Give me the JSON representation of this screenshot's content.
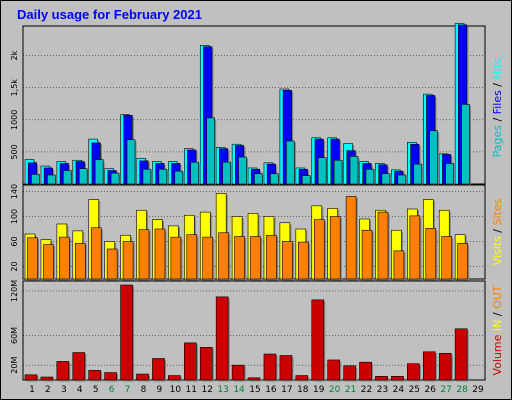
{
  "title": "Daily usage for February 2021",
  "colors": {
    "background": "#c0c0c0",
    "hits": "#00ffff",
    "files": "#0000ff",
    "pages": "#00c0c0",
    "visits": "#ffff00",
    "sites": "#ff8000",
    "kbytes": "#cc0000",
    "weekend_label": "#008040"
  },
  "chart_data": [
    {
      "type": "bar",
      "panel": "hits-files-pages",
      "categories": [
        "1",
        "2",
        "3",
        "4",
        "5",
        "6",
        "7",
        "8",
        "9",
        "10",
        "11",
        "12",
        "13",
        "14",
        "15",
        "16",
        "17",
        "18",
        "19",
        "20",
        "21",
        "22",
        "23",
        "24",
        "25",
        "26",
        "27",
        "28",
        "29"
      ],
      "ticks": [
        {
          "value": 500,
          "label": "500"
        },
        {
          "value": 1000,
          "label": "1000"
        },
        {
          "value": 1500,
          "label": "1,5k"
        },
        {
          "value": 2000,
          "label": "2k"
        }
      ],
      "ylim": [
        0,
        2400
      ],
      "side_label": [
        "Pages",
        " / ",
        "Files",
        " / ",
        "Hits",
        "_"
      ],
      "series": [
        {
          "key": "hits",
          "values": [
            380,
            280,
            350,
            370,
            700,
            240,
            1080,
            400,
            350,
            350,
            550,
            2160,
            570,
            620,
            250,
            330,
            1480,
            250,
            720,
            720,
            630,
            350,
            320,
            220,
            650,
            1400,
            470,
            2500,
            0
          ]
        },
        {
          "key": "files",
          "values": [
            330,
            250,
            320,
            350,
            640,
            210,
            1070,
            360,
            320,
            320,
            530,
            2140,
            550,
            600,
            230,
            310,
            1460,
            230,
            700,
            700,
            520,
            320,
            300,
            200,
            620,
            1380,
            460,
            2480,
            0
          ]
        },
        {
          "key": "pages",
          "values": [
            150,
            140,
            210,
            240,
            380,
            170,
            690,
            230,
            230,
            200,
            340,
            1030,
            340,
            420,
            160,
            160,
            670,
            130,
            410,
            370,
            430,
            230,
            160,
            140,
            310,
            830,
            320,
            1240,
            0
          ]
        }
      ]
    },
    {
      "type": "bar",
      "panel": "visits-sites",
      "categories": [
        "1",
        "2",
        "3",
        "4",
        "5",
        "6",
        "7",
        "8",
        "9",
        "10",
        "11",
        "12",
        "13",
        "14",
        "15",
        "16",
        "17",
        "18",
        "19",
        "20",
        "21",
        "22",
        "23",
        "24",
        "25",
        "26",
        "27",
        "28",
        "29"
      ],
      "ticks": [
        {
          "value": 20,
          "label": "20"
        },
        {
          "value": 60,
          "label": "60"
        },
        {
          "value": 100,
          "label": "100"
        },
        {
          "value": 140,
          "label": "140"
        }
      ],
      "ylim": [
        0,
        144
      ],
      "side_label": [
        "Visits",
        " / ",
        "Sites"
      ],
      "series": [
        {
          "key": "visits",
          "values": [
            72,
            63,
            88,
            77,
            127,
            60,
            70,
            110,
            95,
            85,
            102,
            107,
            137,
            100,
            105,
            100,
            90,
            80,
            117,
            113,
            0,
            96,
            110,
            78,
            112,
            127,
            110,
            71,
            0
          ]
        },
        {
          "key": "sites",
          "values": [
            66,
            55,
            67,
            57,
            82,
            48,
            60,
            79,
            80,
            67,
            71,
            67,
            74,
            68,
            68,
            70,
            60,
            59,
            95,
            100,
            132,
            78,
            107,
            45,
            101,
            81,
            68,
            57,
            0
          ]
        }
      ]
    },
    {
      "type": "bar",
      "panel": "kbytes",
      "categories": [
        "1",
        "2",
        "3",
        "4",
        "5",
        "6",
        "7",
        "8",
        "9",
        "10",
        "11",
        "12",
        "13",
        "14",
        "15",
        "16",
        "17",
        "18",
        "19",
        "20",
        "21",
        "22",
        "23",
        "24",
        "25",
        "26",
        "27",
        "28",
        "29"
      ],
      "ticks": [
        {
          "value": 20,
          "label": "20M"
        },
        {
          "value": 60,
          "label": "60M"
        },
        {
          "value": 120,
          "label": "120M"
        }
      ],
      "ylim": [
        0,
        128
      ],
      "side_label": [
        "Volume",
        " IN ",
        "/",
        " OUT "
      ],
      "series": [
        {
          "key": "kbytes",
          "values": [
            7,
            4,
            25,
            37,
            13,
            10,
            128,
            8,
            29,
            6,
            50,
            44,
            112,
            20,
            3,
            35,
            33,
            6,
            108,
            27,
            19,
            24,
            5,
            5,
            22,
            38,
            36,
            69,
            0
          ]
        }
      ]
    }
  ]
}
